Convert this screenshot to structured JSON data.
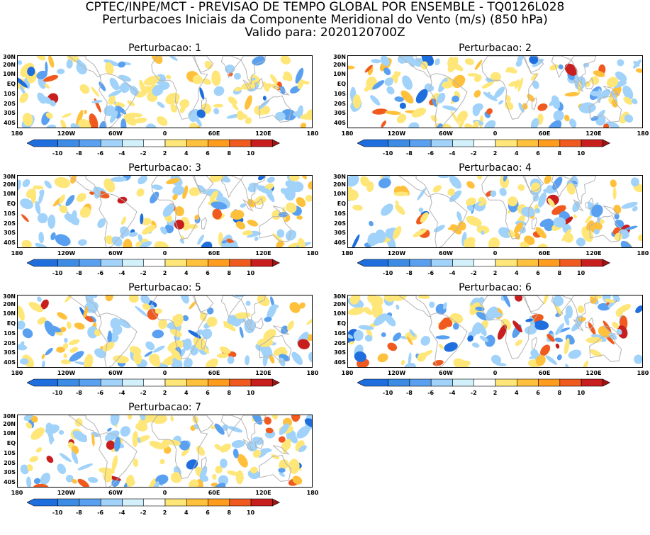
{
  "header": {
    "line1": "CPTEC/INPE/MCT - PREVISAO DE TEMPO GLOBAL POR ENSEMBLE - TQ0126L028",
    "line2": "Perturbacoes Iniciais da Componente Meridional do Vento (m/s) (850 hPa)",
    "line3": "Valido para: 2020120700Z"
  },
  "panels": [
    {
      "title": "Perturbacao: 1",
      "seed": 11
    },
    {
      "title": "Perturbacao: 2",
      "seed": 23
    },
    {
      "title": "Perturbacao: 3",
      "seed": 37
    },
    {
      "title": "Perturbacao: 4",
      "seed": 41
    },
    {
      "title": "Perturbacao: 5",
      "seed": 53
    },
    {
      "title": "Perturbacao: 6",
      "seed": 67
    },
    {
      "title": "Perturbacao: 7",
      "seed": 79
    }
  ],
  "lat_labels": [
    "30N",
    "20N",
    "10N",
    "EQ",
    "10S",
    "20S",
    "30S",
    "40S"
  ],
  "lon_labels": [
    "180",
    "120W",
    "60W",
    "0",
    "60E",
    "120E",
    "180"
  ],
  "colorbar": {
    "levels": [
      "-10",
      "-8",
      "-6",
      "-4",
      "-2",
      "2",
      "4",
      "6",
      "8",
      "10"
    ],
    "colors": [
      "#1e6ede",
      "#3c8ce6",
      "#5aa0f0",
      "#a0d2fa",
      "#d2f0fa",
      "#ffffff",
      "#ffe678",
      "#ffc03c",
      "#ff9c1e",
      "#f05a1e",
      "#c81e1e",
      "#a01414"
    ]
  },
  "colors": {
    "land_outline": "#b4b4b4",
    "neg": [
      "#a0d2fa",
      "#5aa0f0",
      "#1e6ede"
    ],
    "pos": [
      "#ffe678",
      "#ffc03c",
      "#f05a1e",
      "#c81e1e"
    ]
  }
}
